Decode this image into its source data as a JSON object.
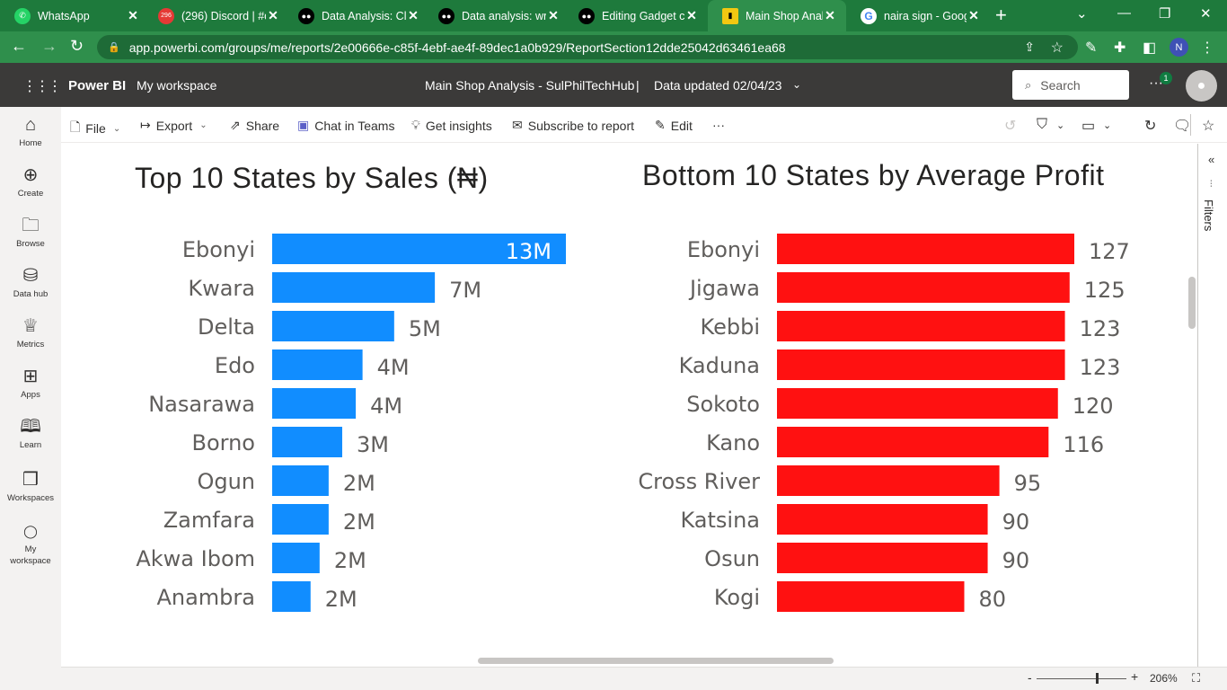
{
  "browser": {
    "tabs": [
      {
        "title": "WhatsApp",
        "icon": "whatsapp-icon",
        "color": "#25d366"
      },
      {
        "title": "(296) Discord | #c",
        "icon": "discord-icon",
        "color": "#e53935",
        "badge": "296"
      },
      {
        "title": "Data Analysis: Cle",
        "icon": "medium-icon",
        "color": "#000000"
      },
      {
        "title": "Data analysis: wr",
        "icon": "medium-icon",
        "color": "#000000"
      },
      {
        "title": "Editing Gadget c",
        "icon": "medium-icon",
        "color": "#000000"
      },
      {
        "title": "Main Shop Analy",
        "icon": "powerbi-icon",
        "color": "#f2c811"
      },
      {
        "title": "naira sign - Goog",
        "icon": "google-icon",
        "color": "#ffffff"
      }
    ],
    "url": "app.powerbi.com/groups/me/reports/2e00666e-c85f-4ebf-ae4f-89dec1a0b929/ReportSection12dde25042d63461ea68",
    "profile_initial": "N"
  },
  "pbi_header": {
    "brand": "Power BI",
    "workspace": "My workspace",
    "report_title": "Main Shop Analysis - SulPhilTechHub",
    "separator": "|",
    "data_updated": "Data updated 02/04/23",
    "search_placeholder": "Search",
    "notification_count": "1"
  },
  "left_nav": [
    {
      "label": "Home",
      "icon": "home-icon"
    },
    {
      "label": "Create",
      "icon": "plus-circle-icon"
    },
    {
      "label": "Browse",
      "icon": "folder-icon"
    },
    {
      "label": "Data hub",
      "icon": "database-icon"
    },
    {
      "label": "Metrics",
      "icon": "trophy-icon"
    },
    {
      "label": "Apps",
      "icon": "apps-icon"
    },
    {
      "label": "Learn",
      "icon": "book-icon"
    },
    {
      "label": "Workspaces",
      "icon": "workspaces-icon"
    },
    {
      "label": "My workspace",
      "icon": "person-icon"
    }
  ],
  "action_bar": {
    "file": "File",
    "export": "Export",
    "share": "Share",
    "chat": "Chat in Teams",
    "insights": "Get insights",
    "subscribe": "Subscribe to report",
    "edit": "Edit",
    "more": "···"
  },
  "filters_label": "Filters",
  "status_bar": {
    "zoom_minus": "-",
    "zoom_plus": "+",
    "zoom": "206%",
    "zoom_level": 0.67
  },
  "chart_data": [
    {
      "type": "bar",
      "orientation": "horizontal",
      "title": "Top 10 States by Sales (₦)",
      "categories": [
        "Ebonyi",
        "Kwara",
        "Delta",
        "Edo",
        "Nasarawa",
        "Borno",
        "Ogun",
        "Zamfara",
        "Akwa Ibom",
        "Anambra"
      ],
      "values": [
        13,
        7.2,
        5.4,
        4.0,
        3.7,
        3.1,
        2.5,
        2.5,
        2.1,
        1.7
      ],
      "labels": [
        "13M",
        "7M",
        "5M",
        "4M",
        "4M",
        "3M",
        "2M",
        "2M",
        "2M",
        "2M"
      ],
      "unit": "M",
      "color": "#118dff",
      "xlim": [
        0,
        13
      ]
    },
    {
      "type": "bar",
      "orientation": "horizontal",
      "title": "Bottom 10 States by Average Profit",
      "categories": [
        "Ebonyi",
        "Jigawa",
        "Kebbi",
        "Kaduna",
        "Sokoto",
        "Kano",
        "Cross River",
        "Katsina",
        "Osun",
        "Kogi"
      ],
      "values": [
        127,
        125,
        123,
        123,
        120,
        116,
        95,
        90,
        90,
        80
      ],
      "labels": [
        "127",
        "125",
        "123",
        "123",
        "120",
        "116",
        "95",
        "90",
        "90",
        "80"
      ],
      "color": "#ff1111",
      "xlim": [
        0,
        127
      ]
    }
  ]
}
